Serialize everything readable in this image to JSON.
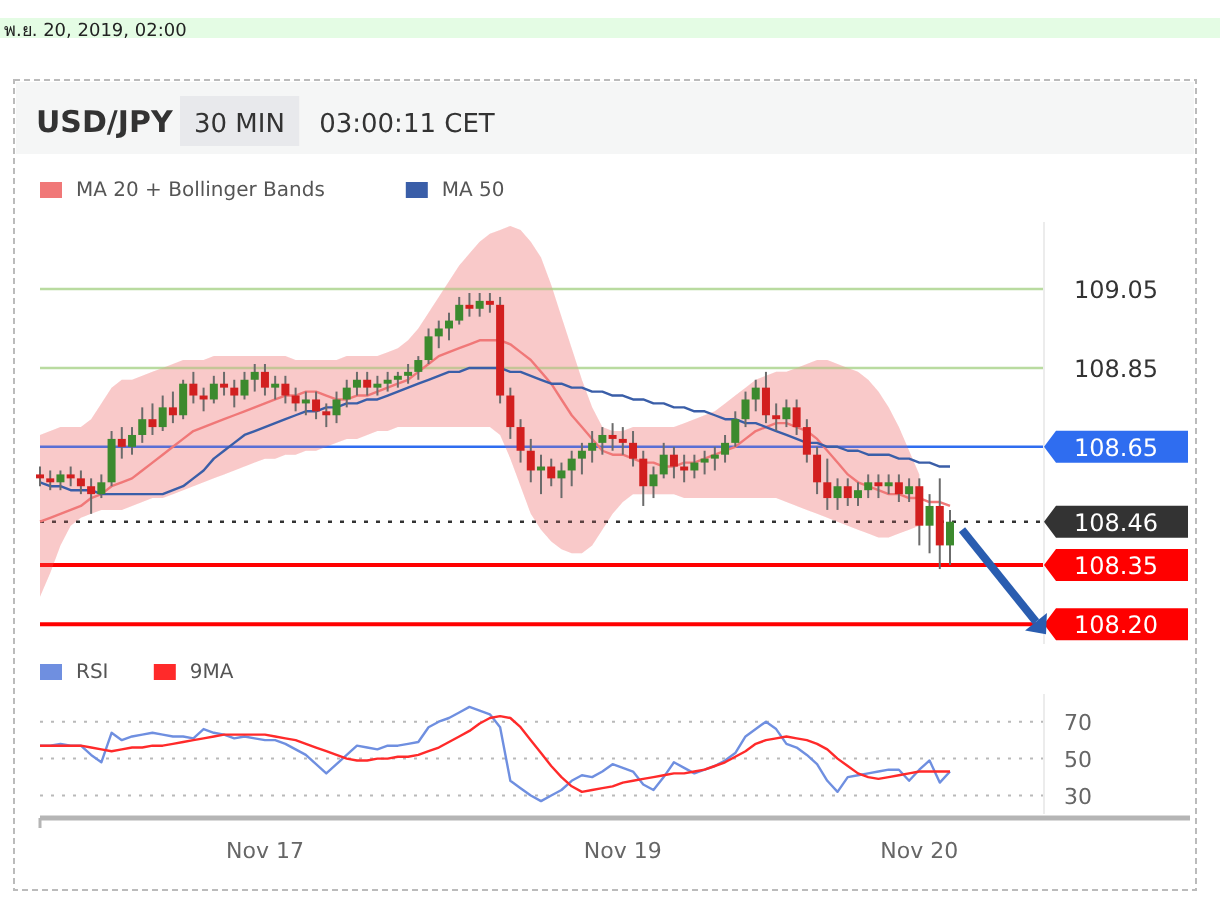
{
  "chart_data": [
    {
      "type": "candlestick",
      "title": "USD/JPY",
      "subtitle": "30 MIN",
      "annotations": [
        "03:00:11 CET",
        "พ.ย. 20, 2019, 02:00"
      ],
      "categories": [
        null,
        null,
        null,
        null,
        null,
        null,
        null,
        null,
        null,
        null,
        null,
        null,
        null,
        null,
        null,
        null,
        null,
        null,
        null,
        null,
        null,
        null,
        null,
        null,
        null,
        null,
        null,
        null,
        null,
        null,
        null,
        null,
        null,
        null,
        null,
        null,
        null,
        null,
        null,
        null,
        null,
        null,
        null,
        null,
        null,
        null,
        null,
        null,
        null,
        null,
        null,
        null,
        null,
        null,
        null,
        null,
        null,
        null,
        null,
        null,
        null,
        null,
        null,
        null,
        null,
        null,
        null,
        null,
        null,
        null,
        null,
        null,
        null,
        null,
        null,
        null,
        null,
        null,
        null,
        null,
        null,
        null,
        null,
        null,
        null,
        null,
        null,
        null,
        null,
        null
      ],
      "legend": "top left",
      "ylim": [
        108.15,
        109.22
      ],
      "yticks": [
        {
          "value": 108.2,
          "label": "108.20"
        },
        108.35,
        108.46,
        108.65,
        108.85,
        109.05
      ],
      "ohlc": [
        [
          108.58,
          108.6,
          108.55,
          108.57
        ],
        [
          108.57,
          108.59,
          108.54,
          108.56
        ],
        [
          108.56,
          108.59,
          108.54,
          108.58
        ],
        [
          108.58,
          108.6,
          108.55,
          108.57
        ],
        [
          108.57,
          108.59,
          108.53,
          108.55
        ],
        [
          108.55,
          108.57,
          108.48,
          108.53
        ],
        [
          108.53,
          108.58,
          108.52,
          108.56
        ],
        [
          108.56,
          108.69,
          108.55,
          108.67
        ],
        [
          108.67,
          108.7,
          108.62,
          108.65
        ],
        [
          108.65,
          108.7,
          108.63,
          108.68
        ],
        [
          108.68,
          108.75,
          108.66,
          108.72
        ],
        [
          108.72,
          108.76,
          108.68,
          108.7
        ],
        [
          108.7,
          108.78,
          108.69,
          108.75
        ],
        [
          108.75,
          108.79,
          108.71,
          108.73
        ],
        [
          108.73,
          108.82,
          108.72,
          108.81
        ],
        [
          108.81,
          108.84,
          108.76,
          108.78
        ],
        [
          108.78,
          108.8,
          108.74,
          108.77
        ],
        [
          108.77,
          108.83,
          108.76,
          108.81
        ],
        [
          108.81,
          108.84,
          108.78,
          108.8
        ],
        [
          108.8,
          108.82,
          108.75,
          108.78
        ],
        [
          108.78,
          108.84,
          108.77,
          108.82
        ],
        [
          108.82,
          108.86,
          108.79,
          108.84
        ],
        [
          108.84,
          108.86,
          108.78,
          108.8
        ],
        [
          108.8,
          108.83,
          108.77,
          108.81
        ],
        [
          108.81,
          108.83,
          108.76,
          108.78
        ],
        [
          108.78,
          108.8,
          108.74,
          108.76
        ],
        [
          108.76,
          108.79,
          108.73,
          108.77
        ],
        [
          108.77,
          108.79,
          108.72,
          108.74
        ],
        [
          108.74,
          108.76,
          108.7,
          108.73
        ],
        [
          108.73,
          108.79,
          108.71,
          108.77
        ],
        [
          108.77,
          108.82,
          108.75,
          108.8
        ],
        [
          108.8,
          108.84,
          108.78,
          108.82
        ],
        [
          108.82,
          108.84,
          108.78,
          108.8
        ],
        [
          108.8,
          108.83,
          108.78,
          108.81
        ],
        [
          108.81,
          108.84,
          108.79,
          108.82
        ],
        [
          108.82,
          108.84,
          108.8,
          108.83
        ],
        [
          108.83,
          108.86,
          108.81,
          108.84
        ],
        [
          108.84,
          108.88,
          108.82,
          108.87
        ],
        [
          108.87,
          108.95,
          108.86,
          108.93
        ],
        [
          108.93,
          108.97,
          108.9,
          108.95
        ],
        [
          108.95,
          108.99,
          108.92,
          108.97
        ],
        [
          108.97,
          109.03,
          108.96,
          109.01
        ],
        [
          109.01,
          109.04,
          108.98,
          109.0
        ],
        [
          109.0,
          109.04,
          108.98,
          109.02
        ],
        [
          109.02,
          109.04,
          108.99,
          109.01
        ],
        [
          109.01,
          109.03,
          108.76,
          108.78
        ],
        [
          108.78,
          108.8,
          108.67,
          108.7
        ],
        [
          108.7,
          108.72,
          108.61,
          108.64
        ],
        [
          108.64,
          108.67,
          108.56,
          108.59
        ],
        [
          108.59,
          108.63,
          108.53,
          108.6
        ],
        [
          108.6,
          108.62,
          108.55,
          108.57
        ],
        [
          108.57,
          108.61,
          108.52,
          108.59
        ],
        [
          108.59,
          108.64,
          108.55,
          108.62
        ],
        [
          108.62,
          108.66,
          108.58,
          108.64
        ],
        [
          108.64,
          108.69,
          108.61,
          108.66
        ],
        [
          108.66,
          108.7,
          108.63,
          108.68
        ],
        [
          108.68,
          108.71,
          108.64,
          108.67
        ],
        [
          108.67,
          108.7,
          108.63,
          108.66
        ],
        [
          108.66,
          108.69,
          108.6,
          108.62
        ],
        [
          108.62,
          108.64,
          108.5,
          108.55
        ],
        [
          108.55,
          108.6,
          108.52,
          108.58
        ],
        [
          108.58,
          108.66,
          108.57,
          108.63
        ],
        [
          108.63,
          108.65,
          108.57,
          108.6
        ],
        [
          108.6,
          108.63,
          108.56,
          108.59
        ],
        [
          108.59,
          108.63,
          108.57,
          108.61
        ],
        [
          108.61,
          108.64,
          108.58,
          108.62
        ],
        [
          108.62,
          108.65,
          108.59,
          108.63
        ],
        [
          108.63,
          108.68,
          108.61,
          108.66
        ],
        [
          108.66,
          108.74,
          108.65,
          108.72
        ],
        [
          108.72,
          108.79,
          108.7,
          108.77
        ],
        [
          108.77,
          108.82,
          108.74,
          108.8
        ],
        [
          108.8,
          108.84,
          108.71,
          108.73
        ],
        [
          108.73,
          108.76,
          108.69,
          108.72
        ],
        [
          108.72,
          108.77,
          108.7,
          108.75
        ],
        [
          108.75,
          108.77,
          108.68,
          108.7
        ],
        [
          108.7,
          108.72,
          108.61,
          108.63
        ],
        [
          108.63,
          108.65,
          108.53,
          108.56
        ],
        [
          108.56,
          108.62,
          108.49,
          108.52
        ],
        [
          108.52,
          108.57,
          108.49,
          108.55
        ],
        [
          108.55,
          108.57,
          108.5,
          108.52
        ],
        [
          108.52,
          108.56,
          108.5,
          108.54
        ],
        [
          108.54,
          108.58,
          108.52,
          108.56
        ],
        [
          108.56,
          108.58,
          108.52,
          108.55
        ],
        [
          108.55,
          108.58,
          108.53,
          108.56
        ],
        [
          108.56,
          108.58,
          108.51,
          108.53
        ],
        [
          108.53,
          108.57,
          108.51,
          108.55
        ],
        [
          108.55,
          108.57,
          108.4,
          108.45
        ],
        [
          108.45,
          108.53,
          108.38,
          108.5
        ],
        [
          108.5,
          108.57,
          108.34,
          108.4
        ],
        [
          108.4,
          108.49,
          108.35,
          108.46
        ]
      ],
      "series": [
        {
          "name": "MA 20 + Bollinger Bands",
          "type": "line",
          "color": "#f07878",
          "values": [
            108.46,
            108.47,
            108.48,
            108.49,
            108.5,
            108.52,
            108.53,
            108.55,
            108.56,
            108.57,
            108.59,
            108.61,
            108.63,
            108.65,
            108.67,
            108.69,
            108.7,
            108.71,
            108.72,
            108.73,
            108.74,
            108.75,
            108.76,
            108.77,
            108.78,
            108.78,
            108.79,
            108.79,
            108.78,
            108.77,
            108.77,
            108.78,
            108.78,
            108.79,
            108.8,
            108.81,
            108.82,
            108.84,
            108.86,
            108.88,
            108.89,
            108.9,
            108.91,
            108.92,
            108.92,
            108.92,
            108.91,
            108.89,
            108.87,
            108.84,
            108.81,
            108.77,
            108.73,
            108.7,
            108.67,
            108.64,
            108.63,
            108.63,
            108.62,
            108.61,
            108.61,
            108.6,
            108.6,
            108.61,
            108.61,
            108.62,
            108.63,
            108.64,
            108.65,
            108.67,
            108.69,
            108.7,
            108.71,
            108.71,
            108.7,
            108.69,
            108.67,
            108.64,
            108.61,
            108.58,
            108.56,
            108.55,
            108.54,
            108.53,
            108.53,
            108.52,
            108.52,
            108.51,
            108.51,
            108.5
          ],
          "lower": [
            108.27,
            108.33,
            108.4,
            108.45,
            108.47,
            108.48,
            108.49,
            108.49,
            108.49,
            108.5,
            108.51,
            108.52,
            108.52,
            108.53,
            108.54,
            108.55,
            108.56,
            108.57,
            108.58,
            108.59,
            108.6,
            108.61,
            108.62,
            108.62,
            108.63,
            108.63,
            108.64,
            108.64,
            108.65,
            108.66,
            108.67,
            108.67,
            108.68,
            108.69,
            108.69,
            108.7,
            108.7,
            108.7,
            108.7,
            108.7,
            108.7,
            108.7,
            108.7,
            108.7,
            108.7,
            108.68,
            108.62,
            108.55,
            108.48,
            108.44,
            108.41,
            108.39,
            108.38,
            108.38,
            108.4,
            108.44,
            108.48,
            108.51,
            108.53,
            108.53,
            108.53,
            108.53,
            108.53,
            108.52,
            108.52,
            108.52,
            108.52,
            108.52,
            108.52,
            108.52,
            108.52,
            108.52,
            108.52,
            108.51,
            108.5,
            108.49,
            108.48,
            108.47,
            108.46,
            108.45,
            108.44,
            108.43,
            108.42,
            108.42,
            108.43,
            108.44,
            108.45,
            null,
            null,
            null
          ],
          "upper": [
            108.68,
            108.69,
            108.7,
            108.7,
            108.7,
            108.72,
            108.76,
            108.8,
            108.82,
            108.82,
            108.83,
            108.84,
            108.85,
            108.86,
            108.87,
            108.87,
            108.87,
            108.88,
            108.88,
            108.88,
            108.88,
            108.88,
            108.88,
            108.88,
            108.88,
            108.87,
            108.87,
            108.87,
            108.87,
            108.87,
            108.88,
            108.88,
            108.88,
            108.88,
            108.89,
            108.9,
            108.92,
            108.95,
            108.99,
            109.03,
            109.07,
            109.11,
            109.14,
            109.17,
            109.19,
            109.2,
            109.21,
            109.2,
            109.17,
            109.13,
            109.06,
            108.98,
            108.9,
            108.82,
            108.75,
            108.7,
            108.69,
            108.69,
            108.7,
            108.7,
            108.7,
            108.7,
            108.7,
            108.71,
            108.72,
            108.73,
            108.74,
            108.76,
            108.78,
            108.8,
            108.82,
            108.83,
            108.84,
            108.84,
            108.85,
            108.86,
            108.87,
            108.87,
            108.86,
            108.85,
            108.84,
            108.82,
            108.79,
            108.75,
            108.7,
            108.64,
            108.58,
            null,
            null,
            null
          ]
        },
        {
          "name": "MA 50",
          "type": "line",
          "color": "#3a5ea8",
          "values": [
            108.56,
            108.55,
            108.55,
            108.54,
            108.54,
            108.54,
            108.53,
            108.53,
            108.53,
            108.53,
            108.53,
            108.53,
            108.53,
            108.54,
            108.55,
            108.57,
            108.59,
            108.62,
            108.64,
            108.66,
            108.68,
            108.69,
            108.7,
            108.71,
            108.72,
            108.73,
            108.74,
            108.74,
            108.75,
            108.75,
            108.76,
            108.76,
            108.77,
            108.77,
            108.78,
            108.79,
            108.8,
            108.81,
            108.82,
            108.83,
            108.84,
            108.84,
            108.85,
            108.85,
            108.85,
            108.85,
            108.84,
            108.84,
            108.83,
            108.82,
            108.81,
            108.81,
            108.8,
            108.8,
            108.79,
            108.79,
            108.78,
            108.78,
            108.77,
            108.77,
            108.76,
            108.76,
            108.75,
            108.75,
            108.74,
            108.74,
            108.73,
            108.72,
            108.72,
            108.71,
            108.71,
            108.7,
            108.69,
            108.68,
            108.67,
            108.66,
            108.66,
            108.65,
            108.65,
            108.64,
            108.64,
            108.63,
            108.63,
            108.63,
            108.62,
            108.62,
            108.61,
            108.61,
            108.6,
            108.6
          ]
        }
      ],
      "ref_lines": [
        {
          "axis": "y",
          "value": 109.05,
          "color": "#b9dba0",
          "line_style": "solid"
        },
        {
          "axis": "y",
          "value": 108.85,
          "color": "#b9dba0",
          "line_style": "solid"
        },
        {
          "axis": "y",
          "value": 108.65,
          "color": "#2f6df0",
          "line_style": "solid"
        },
        {
          "axis": "y",
          "value": 108.46,
          "color": "#333333",
          "line_style": "dotted"
        },
        {
          "axis": "y",
          "value": 108.35,
          "color": "#ff0000",
          "line_style": "solid"
        },
        {
          "axis": "y",
          "value": 108.2,
          "color": "#ff0000",
          "line_style": "solid"
        }
      ]
    },
    {
      "type": "line",
      "categories": [
        null,
        null,
        null,
        null,
        null,
        null,
        null,
        null,
        null,
        null,
        null,
        null,
        null,
        null,
        null,
        null,
        null,
        null,
        null,
        null,
        null,
        null,
        "Nov 17",
        null,
        null,
        null,
        null,
        null,
        null,
        null,
        null,
        null,
        null,
        null,
        null,
        null,
        null,
        null,
        null,
        null,
        null,
        null,
        null,
        null,
        null,
        null,
        null,
        null,
        null,
        null,
        null,
        null,
        null,
        null,
        null,
        null,
        null,
        "Nov 19",
        null,
        null,
        null,
        null,
        null,
        null,
        null,
        null,
        null,
        null,
        null,
        null,
        null,
        null,
        null,
        null,
        null,
        null,
        null,
        null,
        null,
        null,
        null,
        null,
        null,
        null,
        null,
        null,
        "Nov 20",
        null,
        null,
        null
      ],
      "ylim": [
        20,
        85
      ],
      "yticks": [
        30,
        50,
        70
      ],
      "grid": "y",
      "legend": "top left",
      "series": [
        {
          "name": "RSI",
          "color": "#6f8fe0",
          "values": [
            57,
            57,
            58,
            57,
            57,
            52,
            48,
            64,
            60,
            62,
            63,
            64,
            63,
            62,
            62,
            61,
            66,
            64,
            63,
            61,
            62,
            61,
            60,
            60,
            58,
            55,
            52,
            47,
            42,
            47,
            52,
            57,
            56,
            55,
            57,
            57,
            58,
            59,
            67,
            70,
            72,
            75,
            78,
            76,
            74,
            67,
            38,
            34,
            30,
            27,
            30,
            33,
            38,
            41,
            40,
            43,
            47,
            45,
            43,
            36,
            33,
            40,
            48,
            45,
            42,
            44,
            46,
            49,
            53,
            62,
            66,
            70,
            66,
            58,
            56,
            52,
            47,
            38,
            32,
            40,
            41,
            42,
            43,
            44,
            44,
            38,
            44,
            49,
            37,
            43
          ]
        },
        {
          "name": "9MA",
          "color": "#ff2a2a",
          "values": [
            57,
            57,
            57,
            57,
            57,
            56,
            55,
            54,
            55,
            56,
            56,
            57,
            57,
            58,
            59,
            60,
            61,
            62,
            63,
            63,
            63,
            63,
            63,
            62,
            61,
            60,
            58,
            56,
            54,
            52,
            50,
            49,
            49,
            50,
            50,
            51,
            51,
            52,
            54,
            56,
            59,
            62,
            65,
            69,
            72,
            73,
            72,
            67,
            60,
            53,
            46,
            40,
            35,
            32,
            33,
            34,
            35,
            37,
            38,
            39,
            40,
            41,
            42,
            42,
            43,
            44,
            46,
            48,
            51,
            54,
            58,
            60,
            61,
            62,
            61,
            60,
            58,
            55,
            50,
            46,
            42,
            40,
            39,
            40,
            41,
            42,
            43,
            43,
            43,
            43
          ]
        }
      ]
    }
  ]
}
